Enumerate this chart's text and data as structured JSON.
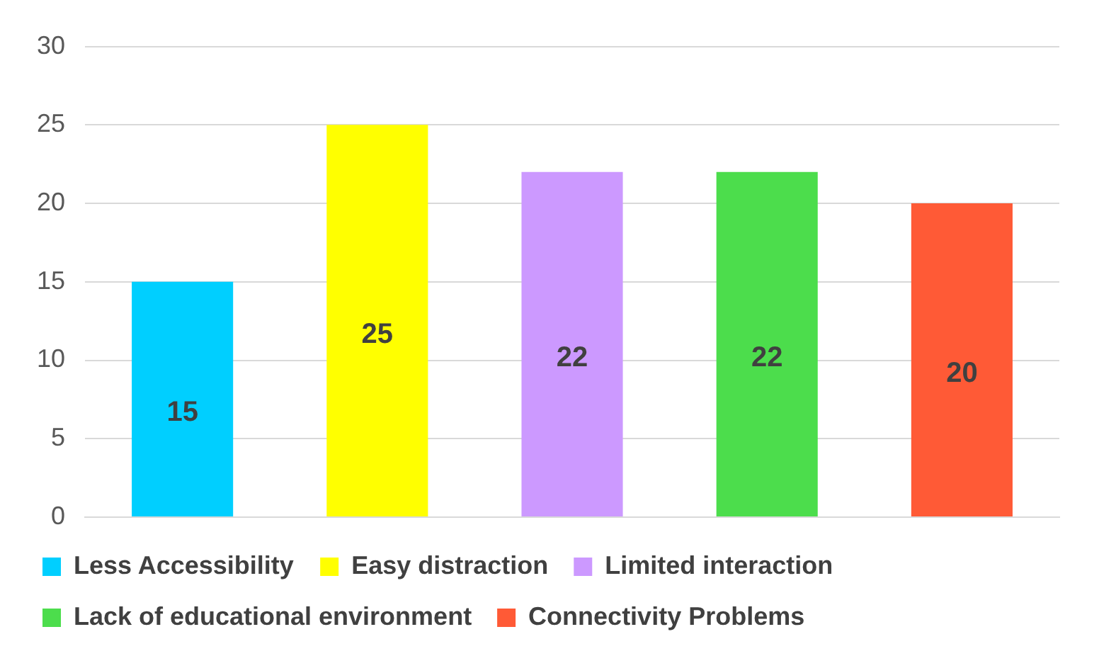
{
  "chart_data": {
    "type": "bar",
    "categories": [
      null,
      null,
      null,
      null,
      null
    ],
    "series": [
      {
        "name": "Less Accessibility",
        "color": "#00cfff",
        "values": [
          15,
          null,
          null,
          null,
          null
        ]
      },
      {
        "name": "Easy distraction",
        "color": "#ffff00",
        "values": [
          null,
          25,
          null,
          null,
          null
        ]
      },
      {
        "name": "Limited interaction",
        "color": "#cc99ff",
        "values": [
          null,
          null,
          22,
          null,
          null
        ]
      },
      {
        "name": "Lack of educational environment",
        "color": "#4cdd4c",
        "values": [
          null,
          null,
          null,
          22,
          null
        ]
      },
      {
        "name": "Connectivity Problems",
        "color": "#ff5a36",
        "values": [
          null,
          null,
          null,
          null,
          20
        ]
      }
    ],
    "ylim": [
      0,
      30
    ],
    "yticks": [
      0,
      5,
      10,
      15,
      20,
      25,
      30
    ],
    "grid": "y",
    "legend": "bottom",
    "data_labels": true
  }
}
